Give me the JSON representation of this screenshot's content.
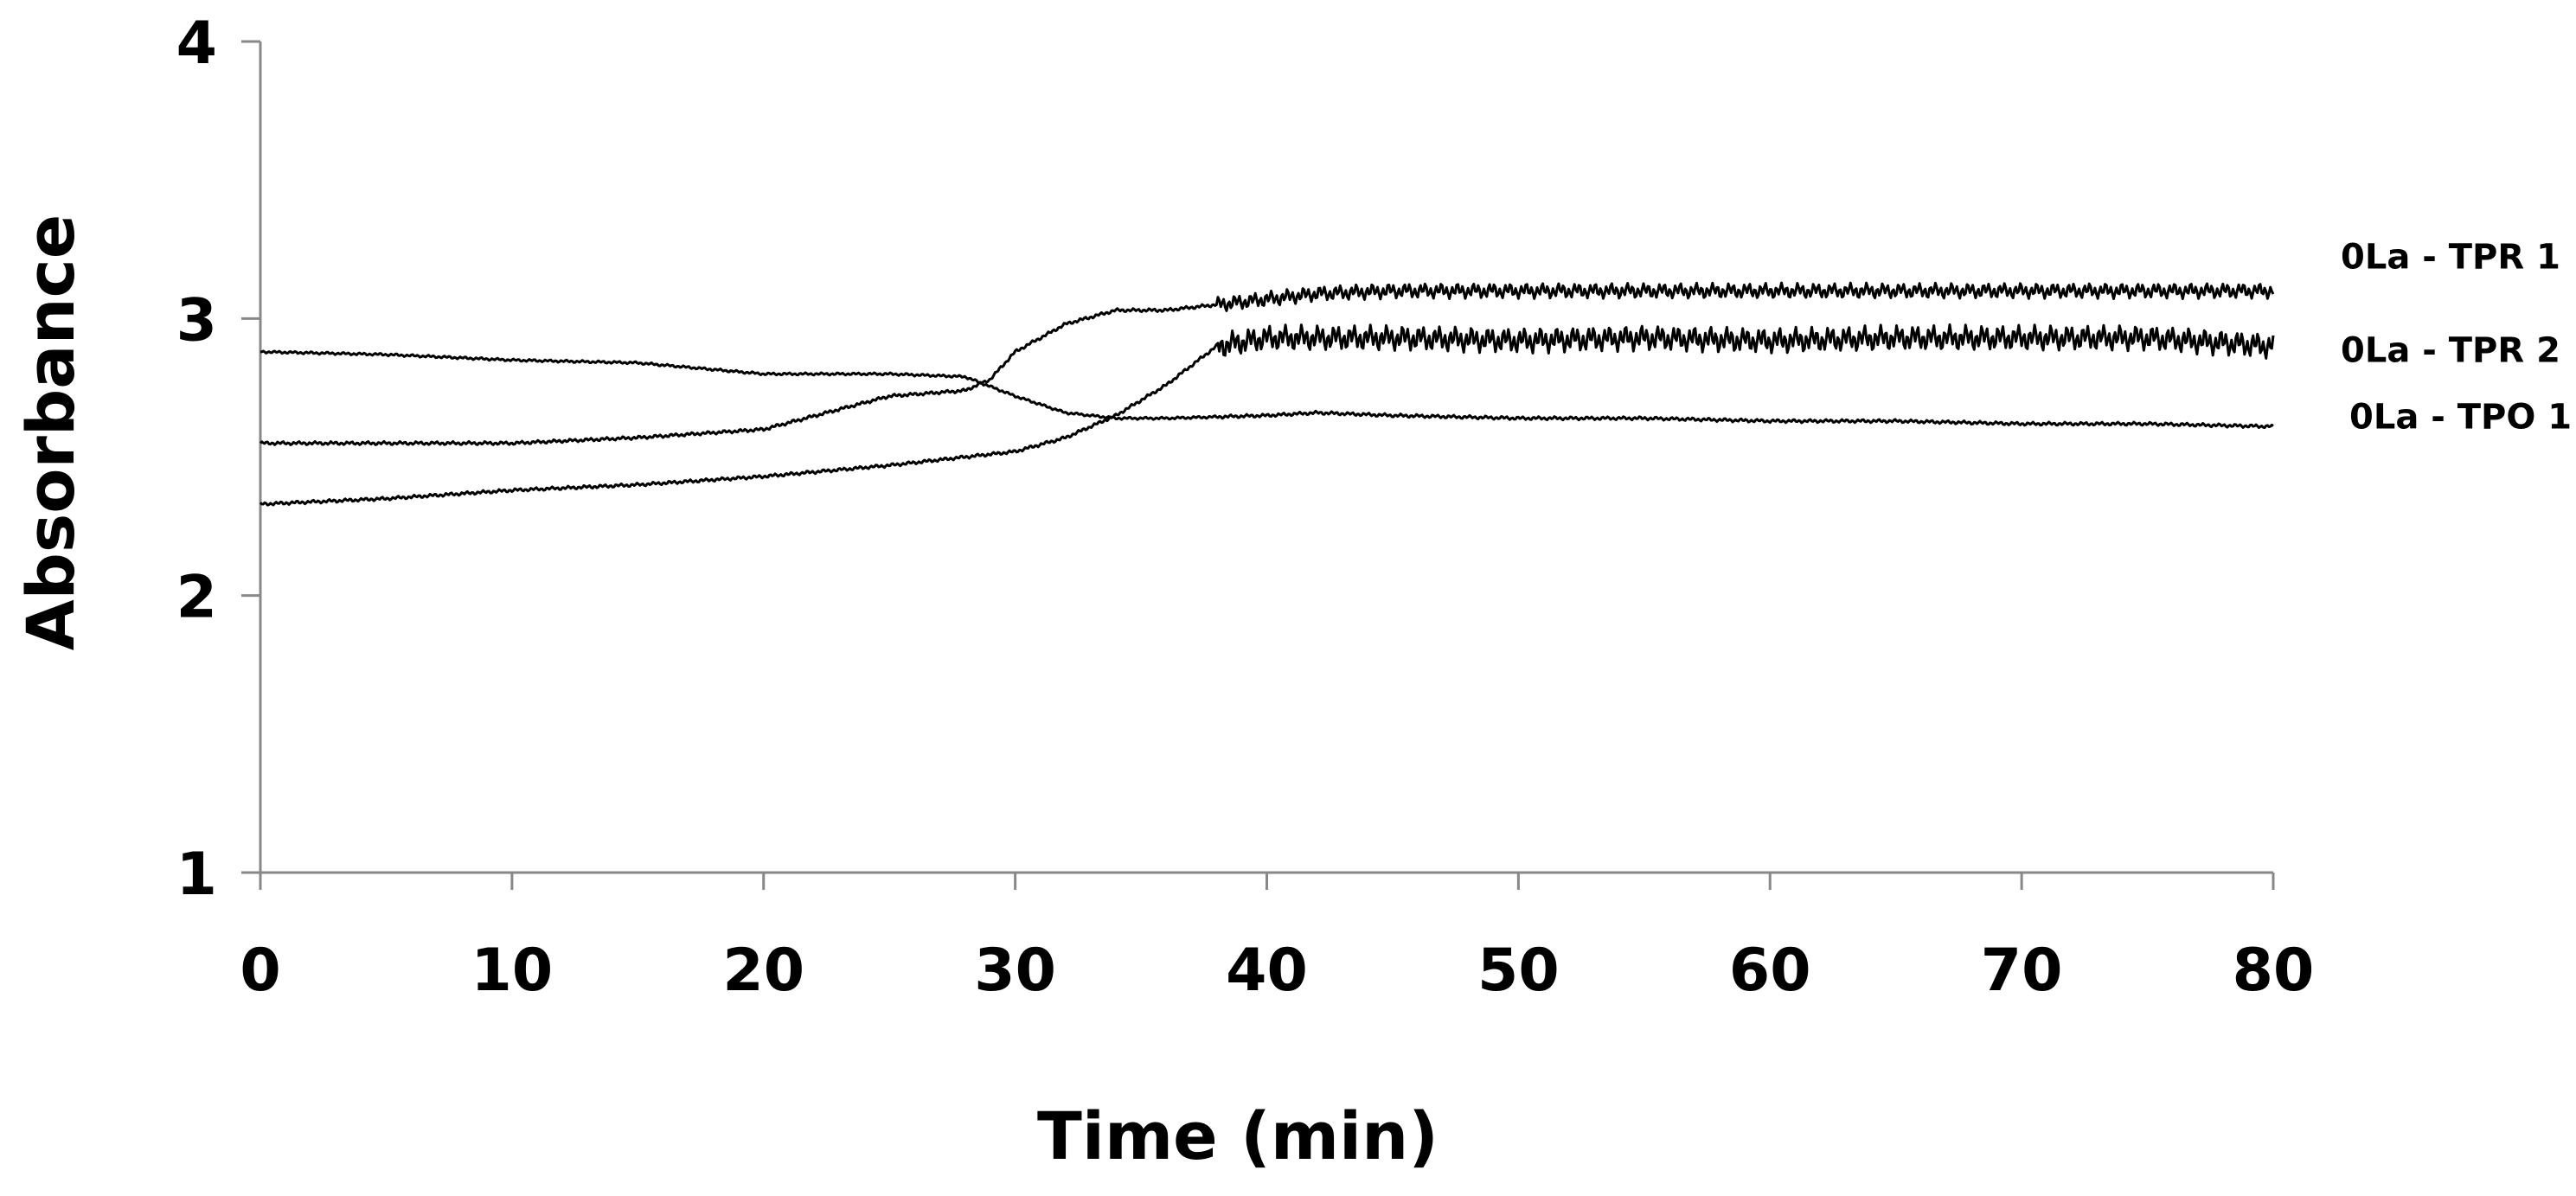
{
  "chart_data": {
    "type": "line",
    "title": "",
    "xlabel": "Time (min)",
    "ylabel": "Absorbance",
    "xlim": [
      0,
      80
    ],
    "ylim": [
      1,
      4
    ],
    "xticks": [
      0,
      10,
      20,
      30,
      40,
      50,
      60,
      70,
      80
    ],
    "yticks": [
      1,
      2,
      3,
      4
    ],
    "grid": false,
    "line_color": "#000000",
    "series": [
      {
        "name": "0La - TPR 1",
        "x": [
          0,
          5,
          10,
          15,
          20,
          25,
          28,
          29,
          30,
          32,
          34,
          36,
          38,
          40,
          42,
          45,
          50,
          55,
          60,
          65,
          70,
          75,
          80
        ],
        "y": [
          2.55,
          2.55,
          2.55,
          2.57,
          2.6,
          2.72,
          2.74,
          2.78,
          2.88,
          2.98,
          3.03,
          3.03,
          3.05,
          3.07,
          3.09,
          3.1,
          3.1,
          3.1,
          3.1,
          3.1,
          3.1,
          3.1,
          3.1
        ]
      },
      {
        "name": "0La - TPR 2",
        "x": [
          0,
          5,
          10,
          15,
          20,
          25,
          30,
          32,
          34,
          36,
          38,
          40,
          45,
          50,
          55,
          60,
          65,
          70,
          75,
          80
        ],
        "y": [
          2.33,
          2.35,
          2.38,
          2.4,
          2.43,
          2.47,
          2.52,
          2.57,
          2.65,
          2.76,
          2.9,
          2.93,
          2.93,
          2.92,
          2.93,
          2.92,
          2.93,
          2.93,
          2.93,
          2.9
        ]
      },
      {
        "name": "0La - TPO 1",
        "x": [
          0,
          5,
          10,
          15,
          20,
          25,
          28,
          30,
          32,
          34,
          36,
          40,
          42,
          45,
          50,
          55,
          60,
          65,
          70,
          75,
          80
        ],
        "y": [
          2.88,
          2.87,
          2.85,
          2.84,
          2.8,
          2.8,
          2.79,
          2.72,
          2.66,
          2.64,
          2.64,
          2.65,
          2.66,
          2.65,
          2.64,
          2.64,
          2.63,
          2.63,
          2.62,
          2.62,
          2.61
        ]
      }
    ]
  }
}
